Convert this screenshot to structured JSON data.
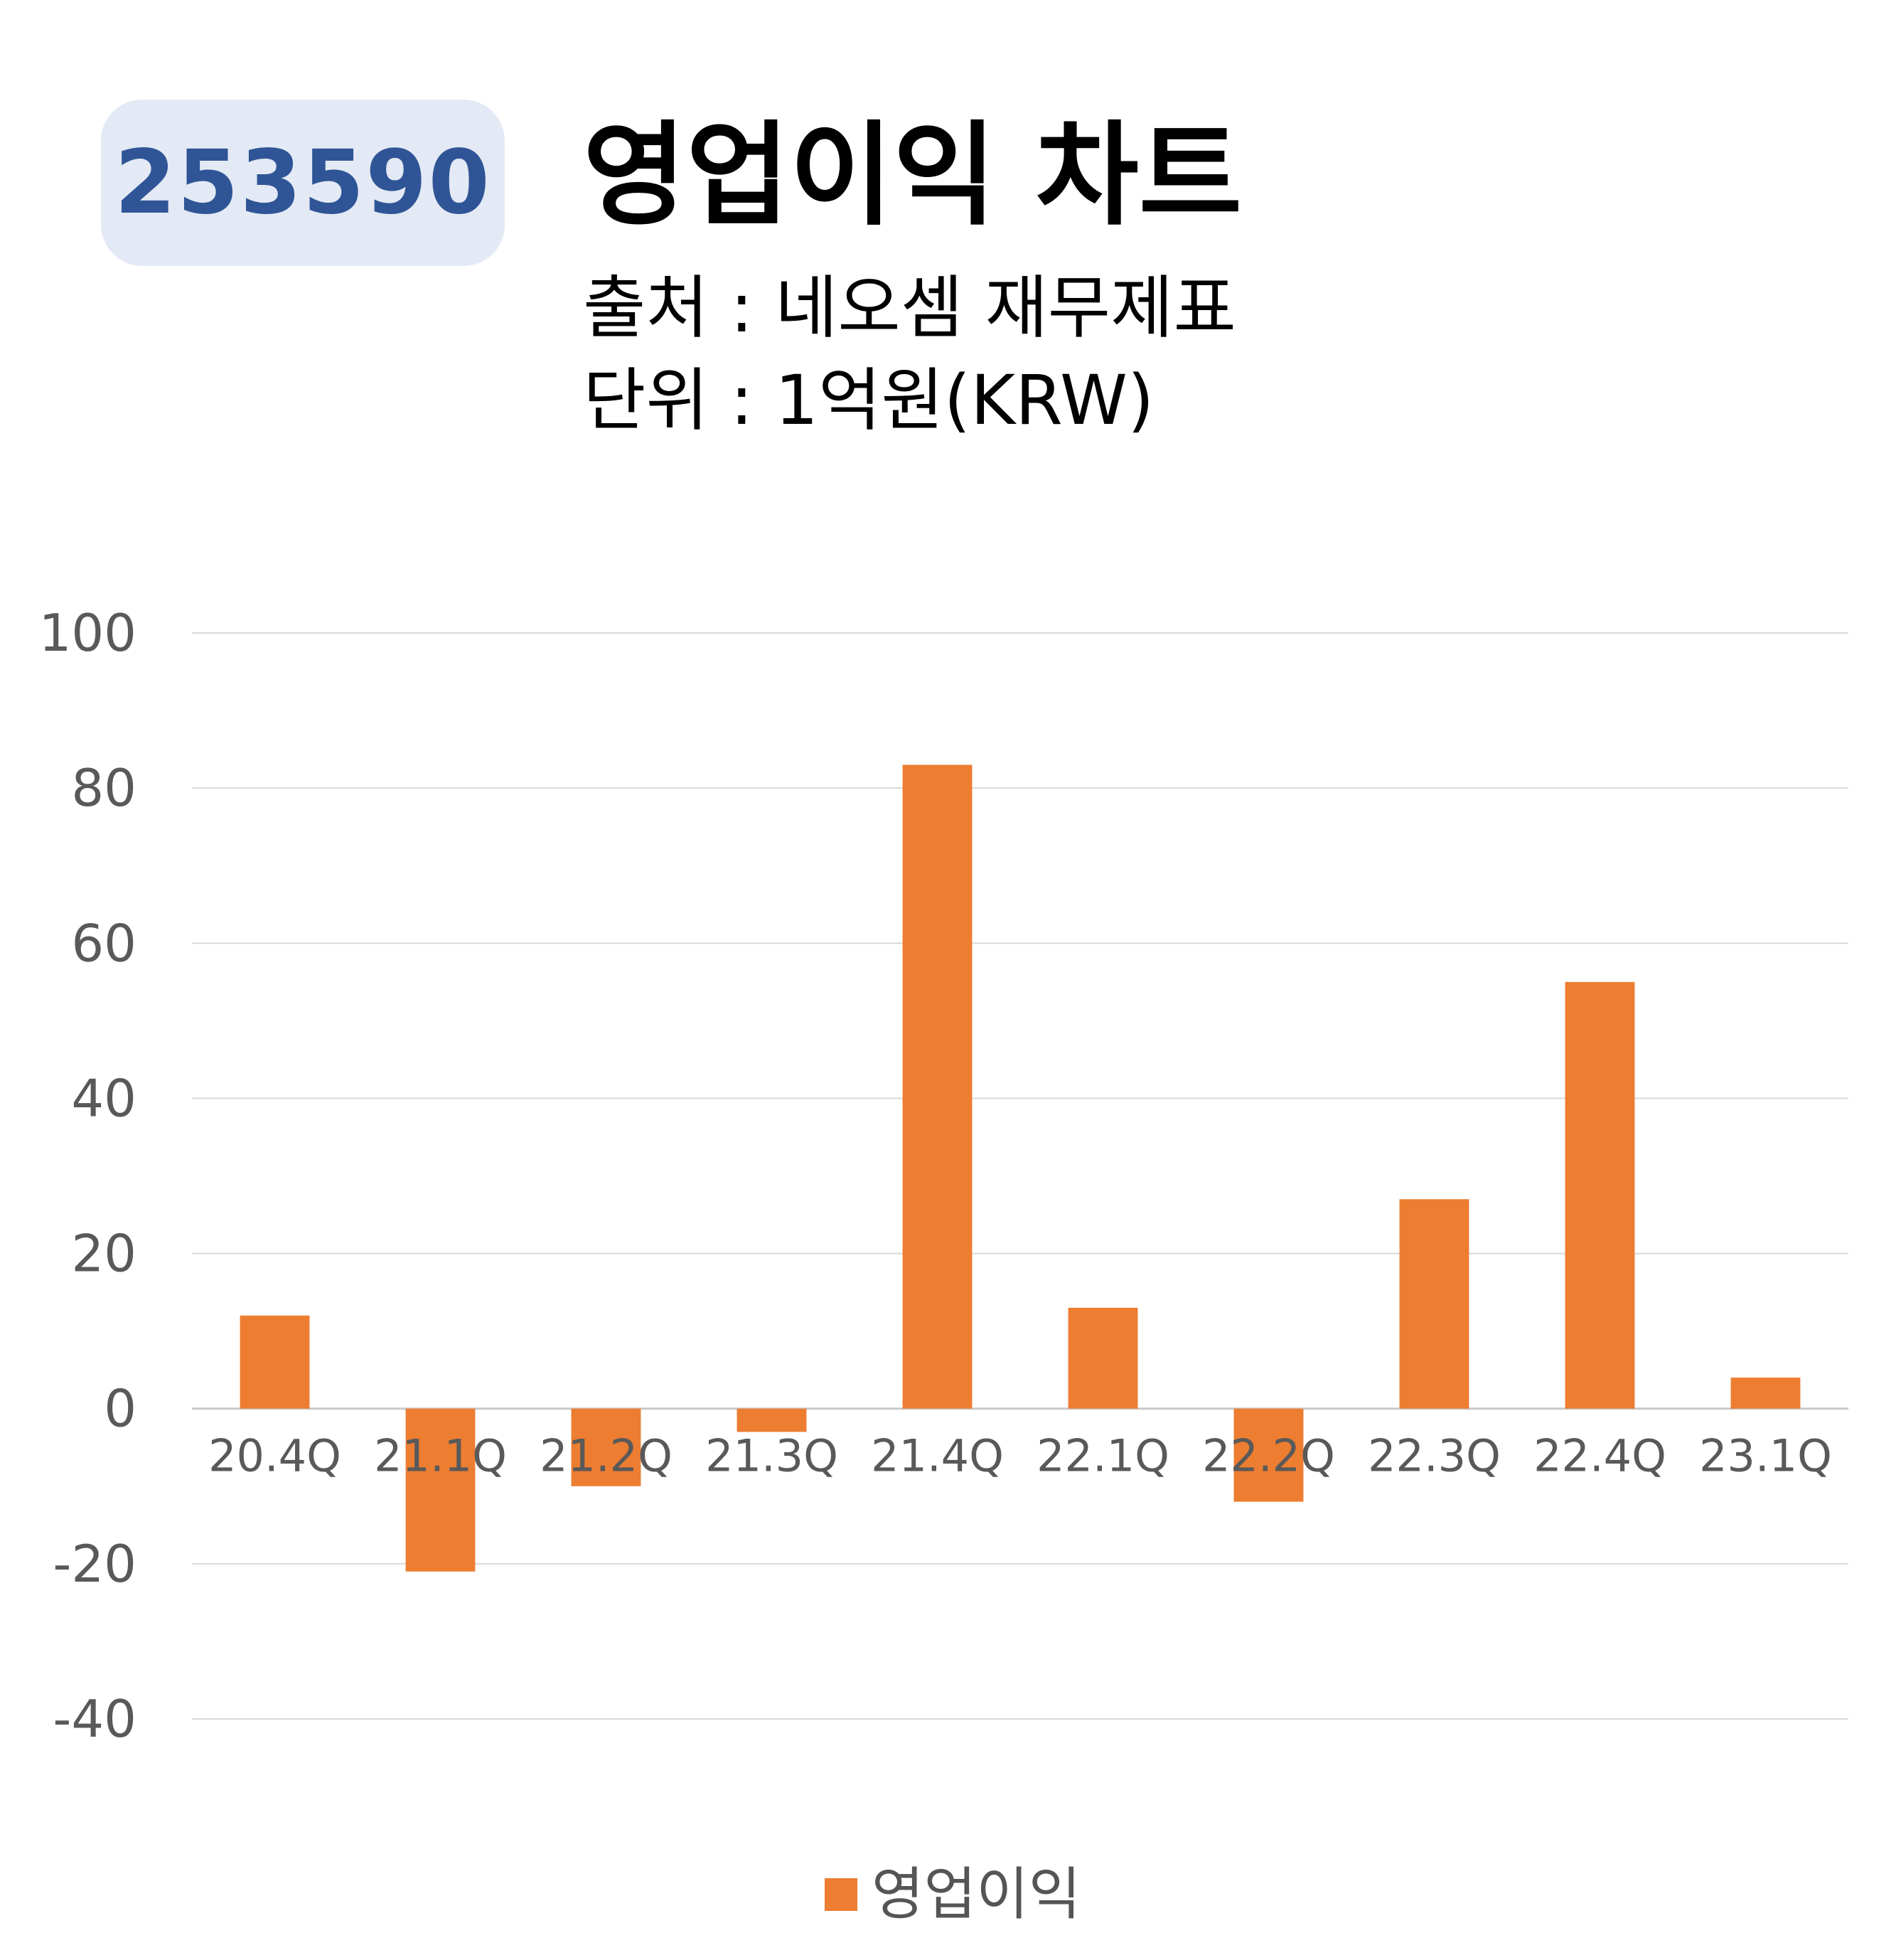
{
  "header": {
    "code": "253590",
    "title": "영업이익 차트",
    "source": "출처 : 네오셈 재무제표",
    "unit": "단위 : 1억원(KRW)"
  },
  "colors": {
    "bar": "#ed7d31",
    "badge_bg": "#e3e9f5",
    "badge_text": "#2f5596",
    "grid": "#d9d9d9",
    "tick_text": "#595959"
  },
  "chart_data": {
    "type": "bar",
    "categories": [
      "20.4Q",
      "21.1Q",
      "21.2Q",
      "21.3Q",
      "21.4Q",
      "22.1Q",
      "22.2Q",
      "22.3Q",
      "22.4Q",
      "23.1Q"
    ],
    "series": [
      {
        "name": "영업이익",
        "values": [
          12,
          -21,
          -10,
          -3,
          83,
          13,
          -12,
          27,
          55,
          4
        ]
      }
    ],
    "ylim": [
      -40,
      100
    ],
    "yticks": [
      100,
      80,
      60,
      40,
      20,
      0,
      -20,
      -40
    ],
    "grid": true,
    "legend": "bottom"
  }
}
